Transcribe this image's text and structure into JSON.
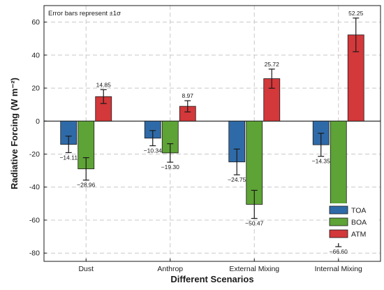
{
  "chart_data": {
    "type": "bar",
    "annotation": "Error bars represent ±1σ",
    "xlabel": "Different Scenarios",
    "ylabel": "Radiative Forcing (W m⁻²)",
    "ylim": [
      -85,
      70
    ],
    "yticks": [
      -80,
      -60,
      -40,
      -20,
      0,
      20,
      40,
      60
    ],
    "categories": [
      "Dust",
      "Anthrop",
      "External Mixing",
      "Internal Mixing"
    ],
    "grid": true,
    "legend_position": "bottom-right",
    "series": [
      {
        "name": "TOA",
        "color": "#2f6aa8",
        "values": [
          -14.11,
          -10.34,
          -24.75,
          -14.35
        ],
        "errors": [
          5.0,
          4.6,
          7.8,
          7.0
        ],
        "labels": [
          "−14.11",
          "−10.34",
          "−24.75",
          "−14.35"
        ]
      },
      {
        "name": "BOA",
        "color": "#5ea336",
        "values": [
          -28.96,
          -19.3,
          -50.47,
          -66.6
        ],
        "errors": [
          6.8,
          5.6,
          8.5,
          9.5
        ],
        "labels": [
          "−28.96",
          "−19.30",
          "−50.47",
          "−66.60"
        ]
      },
      {
        "name": "ATM",
        "color": "#d3383a",
        "values": [
          14.85,
          8.97,
          25.72,
          52.25
        ],
        "errors": [
          4.2,
          3.4,
          5.8,
          10.2
        ],
        "labels": [
          "14.85",
          "8.97",
          "25.72",
          "52.25"
        ]
      }
    ]
  }
}
